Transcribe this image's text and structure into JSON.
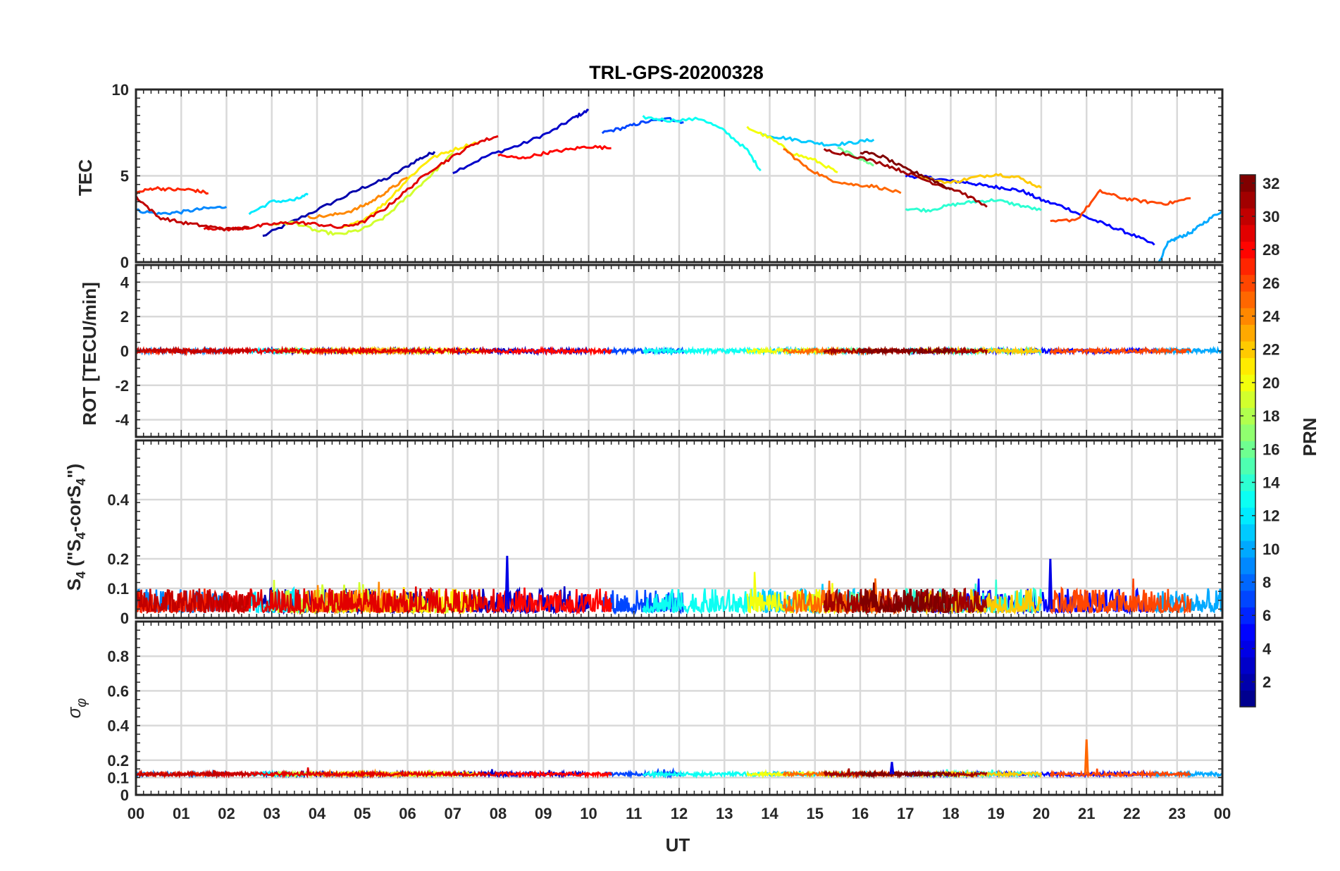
{
  "chart_data": [
    {
      "type": "line",
      "title": "TRL-GPS-20200328",
      "ylabel": "TEC",
      "ylim": [
        0,
        10
      ],
      "yticks": [
        "0",
        "5",
        "10"
      ],
      "xlabel": "UT",
      "series": [
        {
          "prn": 2,
          "x": [
            2.8,
            3.5,
            4.3,
            5.0,
            5.6,
            6.2,
            6.6
          ],
          "values": [
            1.5,
            2.4,
            3.4,
            4.3,
            4.9,
            5.9,
            6.4
          ]
        },
        {
          "prn": 3,
          "x": [
            7.0,
            7.8,
            8.5,
            9.2,
            9.7,
            10.0
          ],
          "values": [
            5.2,
            6.2,
            6.8,
            7.6,
            8.4,
            8.8
          ]
        },
        {
          "prn": 5,
          "x": [
            17.0,
            17.5,
            18.0,
            18.4,
            18.8,
            19.2,
            19.6,
            20.0,
            20.5,
            21.0,
            21.5,
            22.0,
            22.5
          ],
          "values": [
            5.0,
            4.9,
            4.7,
            4.6,
            4.4,
            4.3,
            4.1,
            3.6,
            3.2,
            2.6,
            2.1,
            1.6,
            1.0
          ]
        },
        {
          "prn": 7,
          "x": [
            10.3,
            10.8,
            11.2,
            11.8,
            12.1
          ],
          "values": [
            7.5,
            7.8,
            8.1,
            8.3,
            8.1
          ]
        },
        {
          "prn": 9,
          "x": [
            0.0,
            0.5,
            1.0,
            1.5,
            2.0
          ],
          "values": [
            3.0,
            2.8,
            2.9,
            3.1,
            3.2
          ]
        },
        {
          "prn": 10,
          "x": [
            22.5,
            22.8,
            23.0,
            23.3,
            23.6,
            24.0
          ],
          "values": [
            -0.5,
            1.1,
            1.4,
            1.7,
            2.3,
            3.0
          ]
        },
        {
          "prn": 11,
          "x": [
            13.8,
            14.3,
            14.8,
            15.3,
            15.8,
            16.3
          ],
          "values": [
            7.4,
            7.2,
            7.0,
            6.8,
            6.9,
            7.1
          ]
        },
        {
          "prn": 12,
          "x": [
            2.5,
            3.0,
            3.5,
            3.8
          ],
          "values": [
            2.8,
            3.5,
            3.6,
            3.9
          ]
        },
        {
          "prn": 13,
          "x": [
            11.2,
            11.8,
            12.5,
            13.0,
            13.5,
            13.8
          ],
          "values": [
            8.4,
            8.2,
            8.3,
            7.6,
            6.5,
            5.3
          ]
        },
        {
          "prn": 14,
          "x": [
            17.0,
            17.5,
            18.0,
            18.5,
            19.0,
            19.5,
            20.0
          ],
          "values": [
            3.1,
            3.0,
            3.3,
            3.5,
            3.6,
            3.3,
            3.0
          ]
        },
        {
          "prn": 16,
          "x": [
            15.5,
            16.0,
            16.3
          ],
          "values": [
            6.6,
            6.0,
            5.6
          ]
        },
        {
          "prn": 19,
          "x": [
            3.0,
            3.5,
            4.0,
            4.5,
            5.0,
            5.5,
            6.0,
            6.5,
            7.0
          ],
          "values": [
            2.2,
            2.3,
            1.8,
            1.6,
            1.9,
            2.6,
            3.8,
            5.0,
            6.3
          ]
        },
        {
          "prn": 20,
          "x": [
            13.5,
            14.0,
            14.5,
            15.0,
            15.5
          ],
          "values": [
            7.8,
            7.2,
            6.3,
            5.9,
            5.2
          ]
        },
        {
          "prn": 21,
          "x": [
            4.5,
            5.0,
            5.5,
            6.0,
            6.5,
            7.0,
            7.6
          ],
          "values": [
            1.9,
            2.4,
            3.4,
            4.8,
            6.0,
            6.5,
            7.0
          ]
        },
        {
          "prn": 22,
          "x": [
            17.3,
            18.0,
            18.5,
            19.0,
            19.5,
            20.0
          ],
          "values": [
            4.9,
            4.6,
            4.9,
            5.1,
            4.9,
            4.3
          ]
        },
        {
          "prn": 24,
          "x": [
            3.8,
            4.3,
            4.8,
            5.2,
            5.6,
            6.0
          ],
          "values": [
            2.6,
            2.7,
            3.0,
            3.5,
            4.2,
            4.9
          ]
        },
        {
          "prn": 25,
          "x": [
            14.3,
            14.8,
            15.3,
            15.8,
            16.3,
            16.9
          ],
          "values": [
            6.6,
            5.5,
            4.8,
            4.5,
            4.4,
            4.0
          ]
        },
        {
          "prn": 26,
          "x": [
            20.2,
            20.8,
            21.3,
            21.8,
            22.3,
            22.8,
            23.3
          ],
          "values": [
            2.3,
            2.5,
            4.1,
            3.7,
            3.5,
            3.4,
            3.7
          ]
        },
        {
          "prn": 27,
          "x": [
            0.0,
            0.4,
            0.8,
            1.2,
            1.6
          ],
          "values": [
            4.0,
            4.3,
            4.2,
            4.2,
            4.0
          ]
        },
        {
          "prn": 28,
          "x": [
            8.0,
            8.5,
            9.0,
            9.5,
            10.0,
            10.5
          ],
          "values": [
            6.2,
            6.0,
            6.3,
            6.5,
            6.7,
            6.6
          ]
        },
        {
          "prn": 29,
          "x": [
            1.5,
            2.0,
            2.5,
            3.0,
            3.5,
            4.0,
            4.5,
            5.0,
            5.5,
            6.0,
            6.5,
            7.0,
            7.5,
            8.0
          ],
          "values": [
            2.0,
            1.9,
            2.0,
            2.2,
            2.3,
            2.2,
            2.0,
            2.3,
            3.1,
            4.2,
            5.3,
            6.1,
            6.9,
            7.3
          ]
        },
        {
          "prn": 30,
          "x": [
            0.0,
            0.5,
            1.0,
            1.5,
            2.0,
            2.5
          ],
          "values": [
            3.8,
            2.6,
            2.3,
            2.1,
            1.9,
            2.0
          ]
        },
        {
          "prn": 31,
          "x": [
            15.2,
            15.8,
            16.5,
            17.0,
            17.6,
            18.2,
            18.8
          ],
          "values": [
            6.5,
            6.2,
            5.7,
            5.2,
            4.6,
            4.1,
            3.2
          ]
        },
        {
          "prn": 32,
          "x": [
            16.0,
            16.5,
            17.0,
            17.5,
            18.0
          ],
          "values": [
            6.4,
            6.1,
            5.4,
            4.9,
            4.2
          ]
        }
      ]
    },
    {
      "type": "line",
      "ylabel": "ROT [TECU/min]",
      "ylim": [
        -5,
        5
      ],
      "yticks": [
        "-4",
        "-2",
        "0",
        "2",
        "4"
      ],
      "baseline": 0,
      "noise_amplitude": 0.12
    },
    {
      "type": "line",
      "ylabel": "S₄ (\"S₄-corS₄\")",
      "ylabel_main": "S",
      "ylabel_sub1": "4",
      "ylabel_mid": " (\"S",
      "ylabel_sub2": "4",
      "ylabel_mid2": "-corS",
      "ylabel_sub3": "4",
      "ylabel_end": "\")",
      "ylim": [
        0,
        0.6
      ],
      "yticks": [
        "0",
        "0.1",
        "0.2",
        "0.4"
      ],
      "typical_range": [
        0.0,
        0.12
      ],
      "peaks": [
        {
          "x": 8.2,
          "value": 0.21
        },
        {
          "x": 20.2,
          "value": 0.2
        }
      ]
    },
    {
      "type": "line",
      "ylabel": "σφ",
      "ylabel_main": "σ",
      "ylabel_sub": "φ",
      "ylim": [
        0,
        1
      ],
      "yticks": [
        "0",
        "0.1",
        "0.2",
        "0.4",
        "0.6",
        "0.8"
      ],
      "baseline": 0.12,
      "peaks": [
        {
          "x": 21.0,
          "value": 0.32
        },
        {
          "x": 16.7,
          "value": 0.19
        }
      ]
    }
  ],
  "x_axis": {
    "label": "UT",
    "range": [
      0,
      24
    ],
    "tick_labels": [
      "00",
      "01",
      "02",
      "03",
      "04",
      "05",
      "06",
      "07",
      "08",
      "09",
      "10",
      "11",
      "12",
      "13",
      "14",
      "15",
      "16",
      "17",
      "18",
      "19",
      "20",
      "21",
      "22",
      "23",
      "00"
    ]
  },
  "colorbar": {
    "label": "PRN",
    "range": [
      1,
      32
    ],
    "tick_labels": [
      "2",
      "4",
      "6",
      "8",
      "10",
      "12",
      "14",
      "16",
      "18",
      "20",
      "22",
      "24",
      "26",
      "28",
      "30",
      "32"
    ],
    "colormap": [
      "#00008f",
      "#0000ff",
      "#0080ff",
      "#00ffff",
      "#80ff80",
      "#ffff00",
      "#ff8000",
      "#ff0000",
      "#800000"
    ]
  }
}
